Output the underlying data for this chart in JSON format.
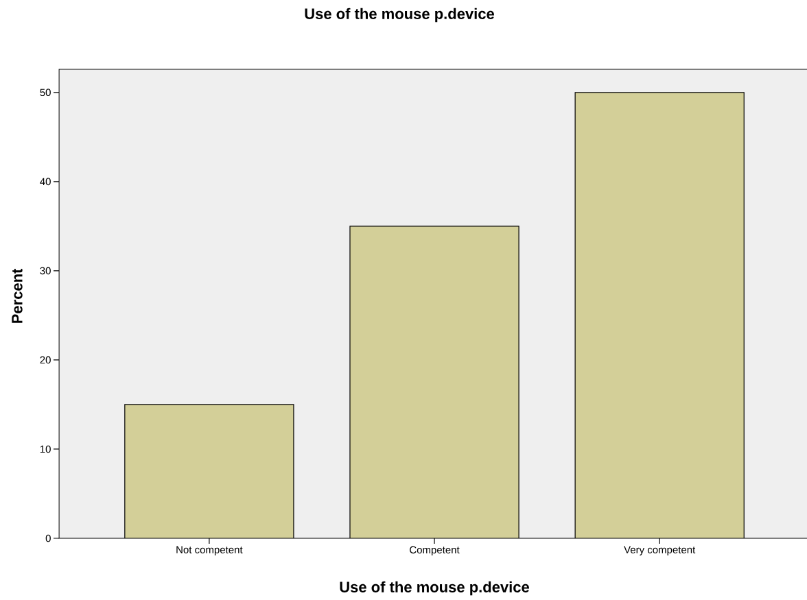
{
  "chart_data": {
    "type": "bar",
    "title": "Use of the mouse p.device",
    "xlabel": "Use of the mouse p.device",
    "ylabel": "Percent",
    "categories": [
      "Not competent",
      "Competent",
      "Very competent"
    ],
    "values": [
      15,
      35,
      50
    ],
    "color": "#d3cf98",
    "ylim": [
      0,
      52.6
    ],
    "yticks": [
      0,
      10,
      20,
      30,
      40,
      50
    ]
  }
}
